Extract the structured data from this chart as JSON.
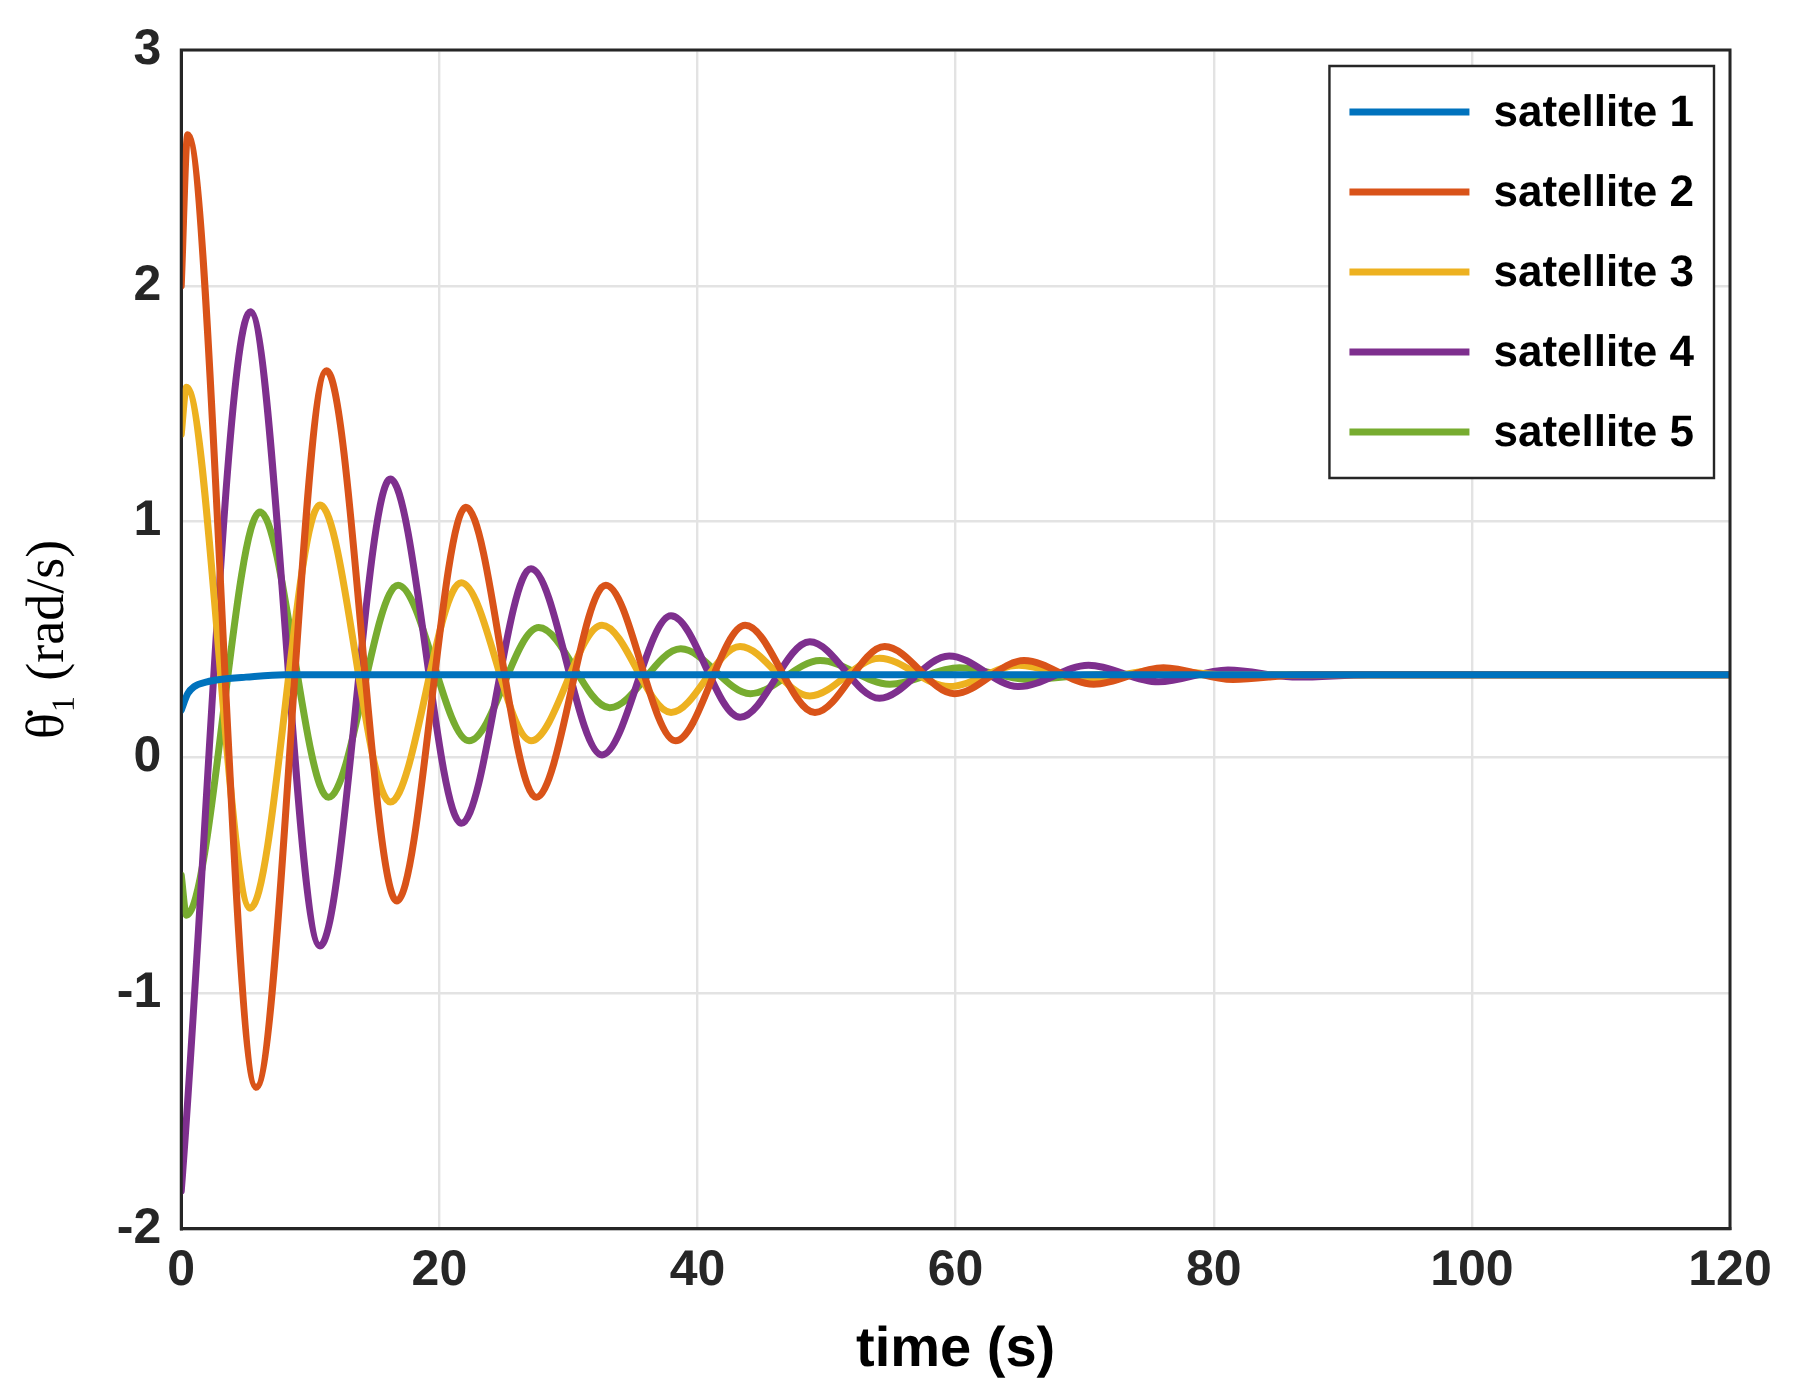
{
  "chart_data": {
    "type": "line",
    "xlabel": "time (s)",
    "ylabel": "θ̇₁ (rad/s)",
    "xlim": [
      0,
      120
    ],
    "xticks": [
      0,
      20,
      40,
      60,
      80,
      100,
      120
    ],
    "ylim": [
      -2,
      3
    ],
    "yticks": [
      -2,
      -1,
      0,
      1,
      2,
      3
    ],
    "grid": true,
    "legend": "top right",
    "marker": "none",
    "line_style": "solid",
    "series": [
      {
        "name": "satellite 1",
        "color": "#0072bd",
        "x": [
          0,
          0.5,
          1,
          2,
          3,
          5,
          8,
          12,
          120
        ],
        "values": [
          0.2,
          0.27,
          0.3,
          0.32,
          0.33,
          0.34,
          0.35,
          0.35,
          0.35
        ]
      },
      {
        "name": "satellite 2",
        "color": "#d95319",
        "x": [
          0,
          0.5,
          5.8,
          11.25,
          16.7,
          22.05,
          27.5,
          32.9,
          38.3,
          43.7,
          49.1,
          54.5,
          59.9,
          65.3,
          70.7,
          76.1,
          81.5,
          87,
          120
        ],
        "values": [
          2.0,
          2.64,
          -1.4,
          1.64,
          -0.61,
          1.06,
          -0.17,
          0.73,
          0.07,
          0.56,
          0.19,
          0.47,
          0.27,
          0.41,
          0.31,
          0.38,
          0.33,
          0.35,
          0.35
        ]
      },
      {
        "name": "satellite 3",
        "color": "#edb120",
        "x": [
          0,
          0.4,
          5.35,
          10.75,
          16.2,
          21.7,
          27.1,
          32.6,
          37.95,
          43.3,
          48.7,
          54.1,
          59.5,
          64.9,
          70.3,
          75.7,
          81,
          120
        ],
        "values": [
          1.37,
          1.57,
          -0.64,
          1.07,
          -0.19,
          0.74,
          0.07,
          0.56,
          0.19,
          0.47,
          0.26,
          0.42,
          0.3,
          0.39,
          0.33,
          0.37,
          0.35,
          0.35
        ]
      },
      {
        "name": "satellite 4",
        "color": "#7e2f8e",
        "x": [
          0,
          5.35,
          10.75,
          16.2,
          21.7,
          27.1,
          32.6,
          37.95,
          43.3,
          48.7,
          54.1,
          59.5,
          64.9,
          70.3,
          75.7,
          81.1,
          86.5,
          92,
          120
        ],
        "values": [
          -1.84,
          1.89,
          -0.8,
          1.18,
          -0.28,
          0.8,
          0.01,
          0.6,
          0.17,
          0.49,
          0.25,
          0.43,
          0.3,
          0.39,
          0.32,
          0.37,
          0.34,
          0.35,
          0.35
        ]
      },
      {
        "name": "satellite 5",
        "color": "#77ac30",
        "x": [
          0,
          0.4,
          6.1,
          11.4,
          16.8,
          22.3,
          27.7,
          33.2,
          38.7,
          44.1,
          49.5,
          54.9,
          60.3,
          65.7,
          71,
          120
        ],
        "values": [
          -0.5,
          -0.67,
          1.04,
          -0.17,
          0.73,
          0.07,
          0.55,
          0.21,
          0.46,
          0.27,
          0.41,
          0.31,
          0.38,
          0.33,
          0.35,
          0.35
        ]
      }
    ]
  }
}
